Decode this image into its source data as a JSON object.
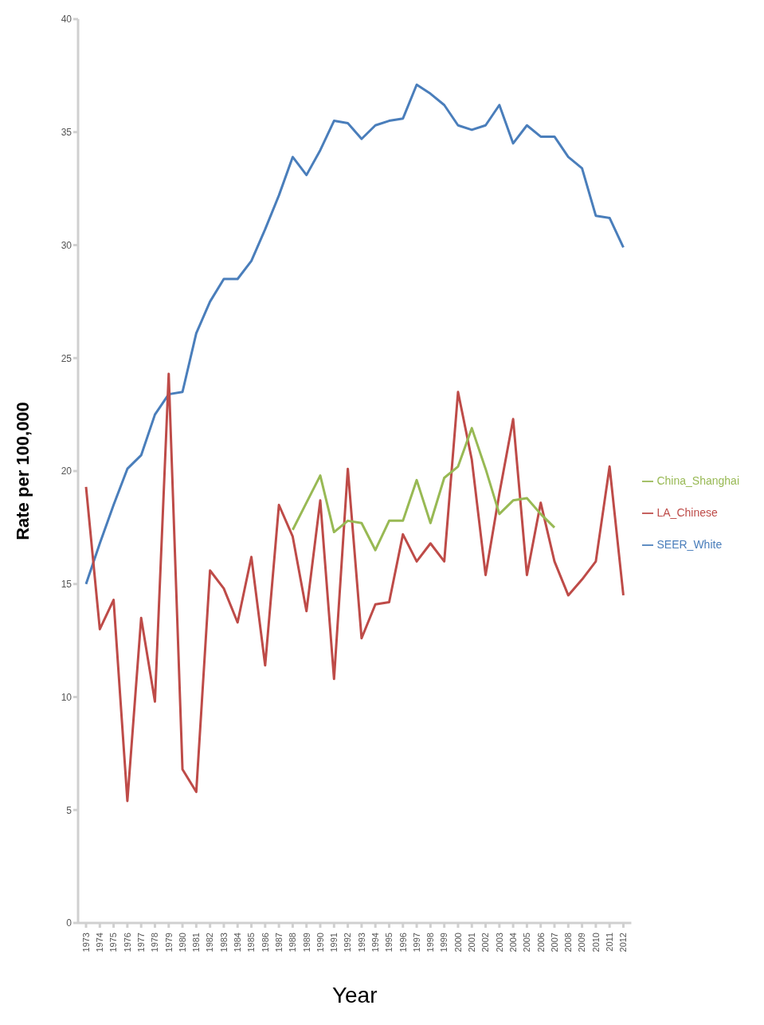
{
  "chart_data": {
    "type": "line",
    "xlabel": "Year",
    "ylabel": "Rate per 100,000",
    "categories": [
      "1973",
      "1974",
      "1975",
      "1976",
      "1977",
      "1978",
      "1979",
      "1980",
      "1981",
      "1982",
      "1983",
      "1984",
      "1985",
      "1986",
      "1987",
      "1988",
      "1989",
      "1990",
      "1991",
      "1992",
      "1993",
      "1994",
      "1995",
      "1996",
      "1997",
      "1998",
      "1999",
      "2000",
      "2001",
      "2002",
      "2003",
      "2004",
      "2005",
      "2006",
      "2007",
      "2008",
      "2009",
      "2010",
      "2011",
      "2012"
    ],
    "series": [
      {
        "name": "SEER_White",
        "color": "#4a7ebb",
        "values": [
          15.0,
          16.8,
          18.5,
          20.1,
          20.7,
          22.5,
          23.4,
          23.5,
          26.1,
          27.5,
          28.5,
          28.5,
          29.3,
          30.7,
          32.2,
          33.9,
          33.1,
          34.2,
          35.5,
          35.4,
          34.7,
          35.3,
          35.5,
          35.6,
          37.1,
          36.7,
          36.2,
          35.3,
          35.1,
          35.3,
          36.2,
          34.5,
          35.3,
          34.8,
          34.8,
          33.9,
          33.4,
          31.3,
          31.2,
          29.9
        ]
      },
      {
        "name": "LA_Chinese",
        "color": "#be4b48",
        "values": [
          19.3,
          13.0,
          14.3,
          5.4,
          13.5,
          9.8,
          24.3,
          6.8,
          5.8,
          15.6,
          14.8,
          13.3,
          16.2,
          11.4,
          18.5,
          17.1,
          13.8,
          18.7,
          10.8,
          20.1,
          12.6,
          14.1,
          14.2,
          17.2,
          16.0,
          16.8,
          16.0,
          23.5,
          20.5,
          15.4,
          19.0,
          22.3,
          15.4,
          18.6,
          16.0,
          14.5,
          15.2,
          16.0,
          20.2,
          14.5
        ]
      },
      {
        "name": "China_Shanghai",
        "color": "#98b954",
        "values": [
          null,
          null,
          null,
          null,
          null,
          null,
          null,
          null,
          null,
          null,
          null,
          null,
          null,
          null,
          null,
          17.4,
          18.6,
          19.8,
          17.3,
          17.8,
          17.7,
          16.5,
          17.8,
          17.8,
          19.6,
          17.7,
          19.7,
          20.2,
          21.9,
          20.1,
          18.1,
          18.7,
          18.8,
          18.1,
          17.5,
          null,
          null,
          null,
          null,
          null
        ]
      }
    ],
    "ylim": [
      0,
      40
    ],
    "yticks": [
      0,
      5,
      10,
      15,
      20,
      25,
      30,
      35,
      40
    ],
    "grid": false,
    "legend": "right",
    "marker": "none",
    "line_style": "solid"
  }
}
